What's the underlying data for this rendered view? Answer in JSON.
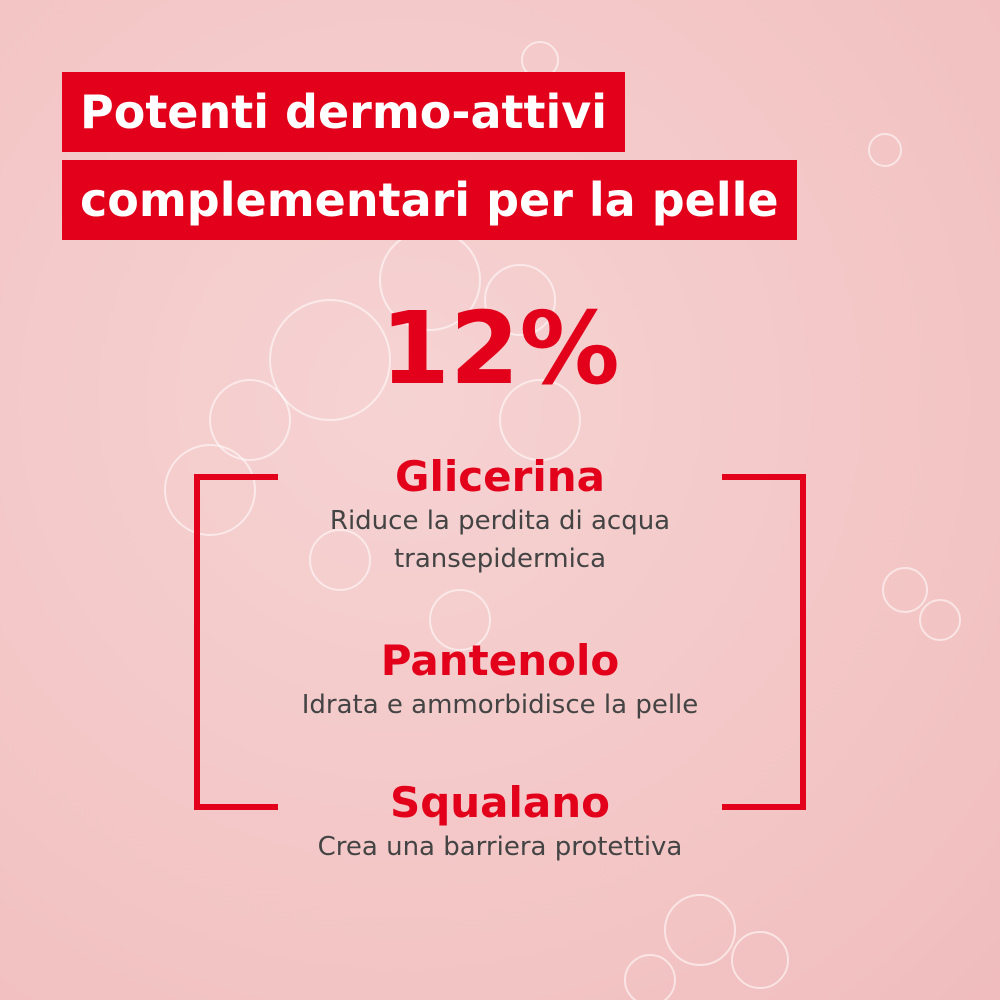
{
  "header": {
    "title_lines": [
      "Potenti dermo-attivi",
      "complementari per la pelle"
    ]
  },
  "highlight": "12%",
  "ingredients": [
    {
      "name": "Glicerina",
      "description_lines": [
        "Riduce la perdita di acqua",
        "transepidermica"
      ]
    },
    {
      "name": "Pantenolo",
      "description_lines": [
        "Idrata e ammorbidisce la pelle"
      ]
    },
    {
      "name": "Squalano",
      "description_lines": [
        "Crea una barriera protettiva"
      ]
    }
  ]
}
